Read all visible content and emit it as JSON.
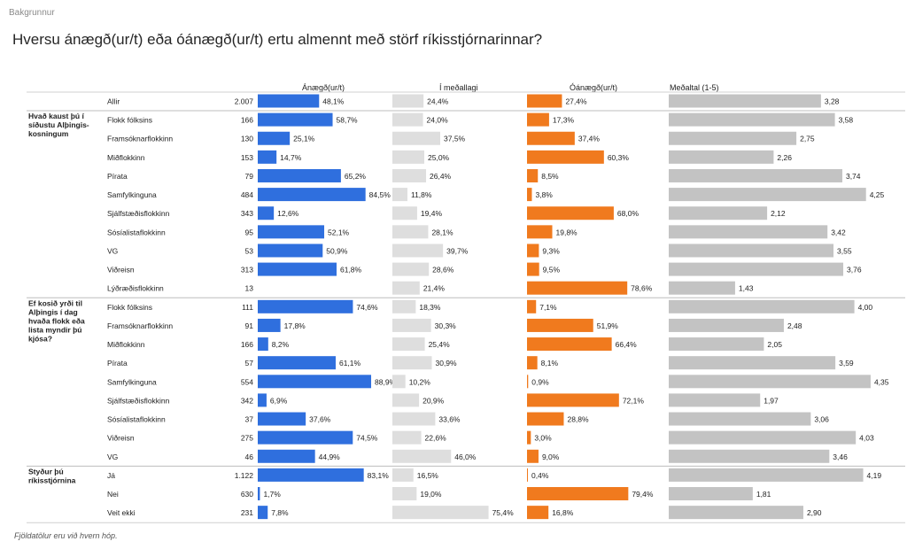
{
  "breadcrumb": "Bakgrunnur",
  "title": "Hversu ánægð(ur/t) eða óánægð(ur/t) ertu almennt með störf ríkisstjórnarinnar?",
  "footnote": "Fjöldatölur eru við hvern hóp.",
  "colors": {
    "satisfied": "#2f6fde",
    "neutral": "#dedede",
    "dissatisfied": "#f07a1e",
    "mean": "#c3c3c3"
  },
  "chart_data": {
    "type": "bar",
    "columns": [
      "Ánægð(ur/t)",
      "Í meðallagi",
      "Óánægð(ur/t)",
      "Meðaltal (1-5)"
    ],
    "mean_scale": [
      1,
      5
    ],
    "groups": [
      {
        "label": "",
        "rows": [
          {
            "label": "Allir",
            "n": "2.007",
            "satisfied": 48.1,
            "neutral": 24.4,
            "dissatisfied": 27.4,
            "mean": 3.28
          }
        ]
      },
      {
        "label": "Hvað kaust þú í síðustu Alþingis-kosningum",
        "label_lines": [
          "Hvað kaust þú í",
          "síðustu Alþingis-",
          "kosningum"
        ],
        "rows": [
          {
            "label": "Flokk fólksins",
            "n": "166",
            "satisfied": 58.7,
            "neutral": 24.0,
            "dissatisfied": 17.3,
            "mean": 3.58
          },
          {
            "label": "Framsóknarflokkinn",
            "n": "130",
            "satisfied": 25.1,
            "neutral": 37.5,
            "dissatisfied": 37.4,
            "mean": 2.75
          },
          {
            "label": "Miðflokkinn",
            "n": "153",
            "satisfied": 14.7,
            "neutral": 25.0,
            "dissatisfied": 60.3,
            "mean": 2.26
          },
          {
            "label": "Pírata",
            "n": "79",
            "satisfied": 65.2,
            "neutral": 26.4,
            "dissatisfied": 8.5,
            "mean": 3.74
          },
          {
            "label": "Samfylkinguna",
            "n": "484",
            "satisfied": 84.5,
            "neutral": 11.8,
            "dissatisfied": 3.8,
            "mean": 4.25
          },
          {
            "label": "Sjálfstæðisflokkinn",
            "n": "343",
            "satisfied": 12.6,
            "neutral": 19.4,
            "dissatisfied": 68.0,
            "mean": 2.12
          },
          {
            "label": "Sósíalistaflokkinn",
            "n": "95",
            "satisfied": 52.1,
            "neutral": 28.1,
            "dissatisfied": 19.8,
            "mean": 3.42
          },
          {
            "label": "VG",
            "n": "53",
            "satisfied": 50.9,
            "neutral": 39.7,
            "dissatisfied": 9.3,
            "mean": 3.55
          },
          {
            "label": "Viðreisn",
            "n": "313",
            "satisfied": 61.8,
            "neutral": 28.6,
            "dissatisfied": 9.5,
            "mean": 3.76
          },
          {
            "label": "Lýðræðisflokkinn",
            "n": "13",
            "satisfied": null,
            "neutral": 21.4,
            "dissatisfied": 78.6,
            "mean": 1.43
          }
        ]
      },
      {
        "label": "Ef kosið yrði til Alþingis í dag hvaða flokk eða lista myndir þú kjósa?",
        "label_lines": [
          "Ef kosið yrði til",
          "Alþingis í dag",
          "hvaða flokk eða",
          "lista myndir þú",
          "kjósa?"
        ],
        "rows": [
          {
            "label": "Flokk fólksins",
            "n": "111",
            "satisfied": 74.6,
            "neutral": 18.3,
            "dissatisfied": 7.1,
            "mean": 4.0
          },
          {
            "label": "Framsóknarflokkinn",
            "n": "91",
            "satisfied": 17.8,
            "neutral": 30.3,
            "dissatisfied": 51.9,
            "mean": 2.48
          },
          {
            "label": "Miðflokkinn",
            "n": "166",
            "satisfied": 8.2,
            "neutral": 25.4,
            "dissatisfied": 66.4,
            "mean": 2.05
          },
          {
            "label": "Pírata",
            "n": "57",
            "satisfied": 61.1,
            "neutral": 30.9,
            "dissatisfied": 8.1,
            "mean": 3.59
          },
          {
            "label": "Samfylkinguna",
            "n": "554",
            "satisfied": 88.9,
            "neutral": 10.2,
            "dissatisfied": 0.9,
            "mean": 4.35
          },
          {
            "label": "Sjálfstæðisflokkinn",
            "n": "342",
            "satisfied": 6.9,
            "neutral": 20.9,
            "dissatisfied": 72.1,
            "mean": 1.97
          },
          {
            "label": "Sósíalistaflokkinn",
            "n": "37",
            "satisfied": 37.6,
            "neutral": 33.6,
            "dissatisfied": 28.8,
            "mean": 3.06
          },
          {
            "label": "Viðreisn",
            "n": "275",
            "satisfied": 74.5,
            "neutral": 22.6,
            "dissatisfied": 3.0,
            "mean": 4.03
          },
          {
            "label": "VG",
            "n": "46",
            "satisfied": 44.9,
            "neutral": 46.0,
            "dissatisfied": 9.0,
            "mean": 3.46
          }
        ]
      },
      {
        "label": "Styður þú ríkisstjórnina",
        "label_lines": [
          "Styður þú",
          "ríkisstjórnina"
        ],
        "rows": [
          {
            "label": "Já",
            "n": "1.122",
            "satisfied": 83.1,
            "neutral": 16.5,
            "dissatisfied": 0.4,
            "mean": 4.19
          },
          {
            "label": "Nei",
            "n": "630",
            "satisfied": 1.7,
            "neutral": 19.0,
            "dissatisfied": 79.4,
            "mean": 1.81
          },
          {
            "label": "Veit ekki",
            "n": "231",
            "satisfied": 7.8,
            "neutral": 75.4,
            "dissatisfied": 16.8,
            "mean": 2.9
          }
        ]
      }
    ]
  }
}
